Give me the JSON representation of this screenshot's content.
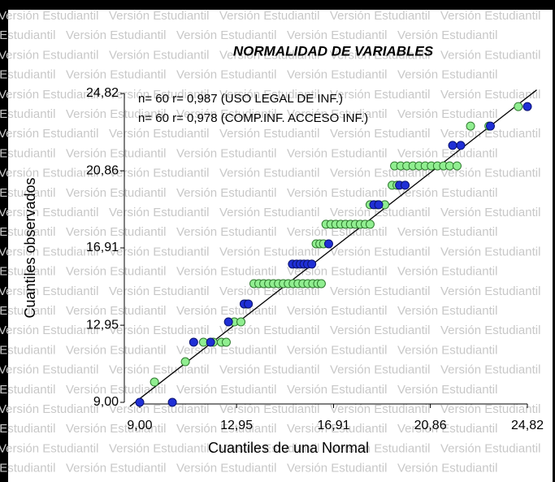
{
  "chart_data": {
    "type": "scatter",
    "title": "NORMALIDAD DE VARIABLES",
    "x_label": "Cuantiles de una Normal",
    "y_label": "Cuantiles observados",
    "watermark": "Versión Estudiantil",
    "xlim": [
      9.0,
      24.82
    ],
    "ylim": [
      9.0,
      24.82
    ],
    "xticks": [
      {
        "value": 9.0,
        "label": "9,00"
      },
      {
        "value": 12.95,
        "label": "12,95"
      },
      {
        "value": 16.91,
        "label": "16,91"
      },
      {
        "value": 20.86,
        "label": "20,86"
      },
      {
        "value": 24.82,
        "label": "24,82"
      }
    ],
    "yticks": [
      {
        "value": 9.0,
        "label": "9,00"
      },
      {
        "value": 12.95,
        "label": "12,95"
      },
      {
        "value": 16.91,
        "label": "16,91"
      },
      {
        "value": 20.86,
        "label": "20,86"
      },
      {
        "value": 24.82,
        "label": "24,82"
      }
    ],
    "reference_line": {
      "x": [
        8.6,
        25.2
      ],
      "y": [
        8.8,
        25.0
      ],
      "color": "#000000"
    },
    "series": [
      {
        "name": "n= 60 r= 0,987 (USO LEGAL DE INF.)",
        "color": "#1f2fd6",
        "edge": "#0a1270",
        "x": [
          9.0,
          10.33,
          11.2,
          11.89,
          12.62,
          13.26,
          13.43,
          15.23,
          15.4,
          15.55,
          15.7,
          15.85,
          16.02,
          16.71,
          18.55,
          18.75,
          19.6,
          19.83,
          21.77,
          22.1,
          23.31,
          24.82
        ],
        "values": [
          9.0,
          9.0,
          12.08,
          12.08,
          13.12,
          14.04,
          14.04,
          16.08,
          16.08,
          16.08,
          16.08,
          16.08,
          16.08,
          17.12,
          19.12,
          19.12,
          20.12,
          20.12,
          22.16,
          22.16,
          23.15,
          24.15
        ]
      },
      {
        "name": "n= 60 r= 0,978 (COMP.INF. ACCESO INF.)",
        "color": "#90ee90",
        "edge": "#2f7a2f",
        "x": [
          9.6,
          10.86,
          11.6,
          12.0,
          12.33,
          12.53,
          12.86,
          13.13,
          13.33,
          13.66,
          13.86,
          14.06,
          14.26,
          14.46,
          14.66,
          14.86,
          15.06,
          15.26,
          15.46,
          15.66,
          15.86,
          16.06,
          16.26,
          16.41,
          16.2,
          16.35,
          16.5,
          16.6,
          16.8,
          17.0,
          17.2,
          17.4,
          17.6,
          17.8,
          18.0,
          18.2,
          18.4,
          18.4,
          18.7,
          19.0,
          19.3,
          19.5,
          19.4,
          19.65,
          19.9,
          20.15,
          20.4,
          20.65,
          20.9,
          21.15,
          21.4,
          21.65,
          21.95,
          22.5,
          23.25,
          24.45
        ],
        "values": [
          10.04,
          11.08,
          12.08,
          12.08,
          12.08,
          12.08,
          13.12,
          13.12,
          14.04,
          15.08,
          15.08,
          15.08,
          15.08,
          15.08,
          15.08,
          15.08,
          15.08,
          15.08,
          15.08,
          15.08,
          15.08,
          15.08,
          15.08,
          15.08,
          17.12,
          17.12,
          17.12,
          18.12,
          18.12,
          18.12,
          18.12,
          18.12,
          18.12,
          18.12,
          18.12,
          18.12,
          18.12,
          19.12,
          19.12,
          19.12,
          20.12,
          20.12,
          21.11,
          21.11,
          21.11,
          21.11,
          21.11,
          21.11,
          21.11,
          21.11,
          21.11,
          21.11,
          21.11,
          23.15,
          23.15,
          24.15
        ]
      }
    ]
  }
}
